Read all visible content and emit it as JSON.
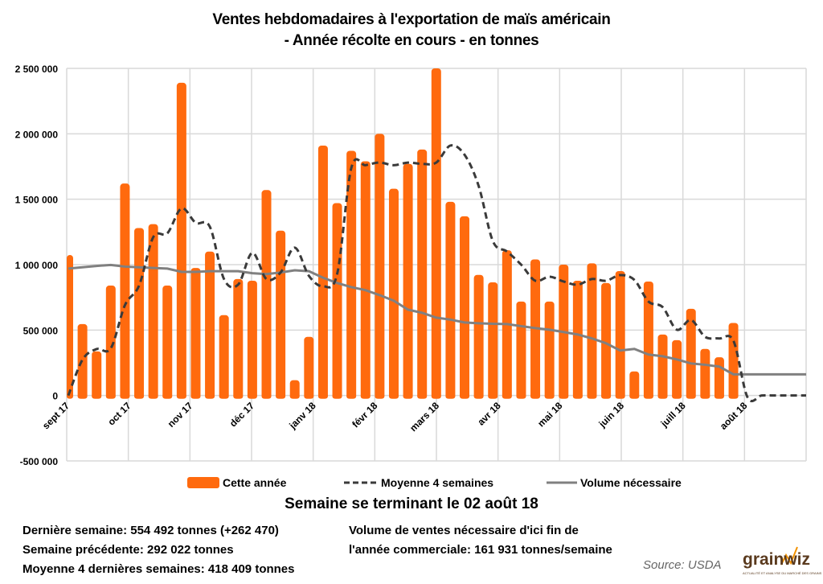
{
  "title_line1": "Ventes hebdomadaires à l'exportation de maïs américain",
  "title_line2": "- Année récolte en cours - en tonnes",
  "subtitle": "Semaine se terminant le 02 août 18",
  "legend": {
    "bars": "Cette année",
    "avg": "Moyenne 4 semaines",
    "needed": "Volume nécessaire"
  },
  "info_left": [
    "Dernière semaine: 554 492 tonnes (+262 470)",
    "Semaine précédente: 292 022 tonnes",
    "Moyenne 4 dernières semaines: 418 409 tonnes"
  ],
  "info_right": [
    "Volume de ventes nécessaire d'ici fin de",
    "l'année commerciale: 161 931 tonnes/semaine"
  ],
  "source": "Source: USDA",
  "logo": {
    "word": "grainwiz",
    "tagline": "ACTUALITÉ ET ANALYSE DU MARCHÉ DES GRAINS"
  },
  "colors": {
    "bars": "#ff6a0e",
    "avg": "#3a3a3a",
    "needed": "#808080",
    "grid": "#d9d9d9"
  },
  "chart_data": {
    "type": "bar",
    "title": "Ventes hebdomadaires à l'exportation de maïs américain - Année récolte en cours - en tonnes",
    "xlabel": "",
    "ylabel": "",
    "ylim": [
      -500000,
      2500000
    ],
    "yticks": [
      2500000,
      2000000,
      1500000,
      1000000,
      500000,
      0,
      -500000
    ],
    "ytick_labels": [
      "2 500 000",
      "2 000 000",
      "1 500 000",
      "1 000 000",
      "500 000",
      "0",
      "-500 000"
    ],
    "grid": true,
    "legend_position": "bottom",
    "month_labels": [
      "sept 17",
      "oct 17",
      "nov 17",
      "déc 17",
      "janv 18",
      "févr 18",
      "mars 18",
      "avr 18",
      "mai 18",
      "juin 18",
      "juill 18",
      "août 18"
    ],
    "weeks_in_year": 53,
    "series": [
      {
        "name": "Cette année",
        "kind": "bar",
        "values": [
          1074000,
          546000,
          337000,
          840000,
          1620000,
          1280000,
          1310000,
          840000,
          2390000,
          975000,
          1100000,
          614000,
          890000,
          877000,
          1570000,
          1260000,
          117000,
          448000,
          1910000,
          1470000,
          1870000,
          1790000,
          2000000,
          1580000,
          1770000,
          1880000,
          2500000,
          1480000,
          1370000,
          922000,
          865000,
          1110000,
          718000,
          1040000,
          718000,
          1000000,
          877000,
          1010000,
          859000,
          951000,
          184000,
          871000,
          466000,
          423000,
          663000,
          356000,
          292022,
          554492
        ]
      },
      {
        "name": "Moyenne 4 semaines",
        "kind": "line-dashed",
        "values": [
          0,
          273000,
          355000,
          360000,
          690000,
          840000,
          1210000,
          1240000,
          1430000,
          1320000,
          1290000,
          890000,
          847000,
          1090000,
          890000,
          940000,
          1130000,
          915000,
          835000,
          930000,
          1740000,
          1760000,
          1780000,
          1760000,
          1780000,
          1770000,
          1780000,
          1910000,
          1840000,
          1600000,
          1180000,
          1100000,
          1000000,
          877000,
          908000,
          871000,
          847000,
          890000,
          877000,
          920000,
          883000,
          718000,
          675000,
          503000,
          577000,
          448000,
          436000,
          418409,
          -15000,
          0,
          0,
          0,
          0
        ]
      },
      {
        "name": "Volume nécessaire",
        "kind": "line",
        "values": [
          970000,
          980000,
          990000,
          998000,
          985000,
          980000,
          975000,
          970000,
          945000,
          945000,
          950000,
          950000,
          950000,
          935000,
          928000,
          940000,
          957000,
          950000,
          900000,
          860000,
          828000,
          805000,
          767000,
          724000,
          656000,
          632000,
          595000,
          580000,
          558000,
          552000,
          548000,
          546000,
          530000,
          515000,
          503000,
          485000,
          466000,
          436000,
          399000,
          344000,
          356000,
          313000,
          300000,
          276000,
          245000,
          235000,
          221000,
          161931,
          161931,
          161931,
          161931,
          161931,
          161931
        ]
      }
    ]
  }
}
